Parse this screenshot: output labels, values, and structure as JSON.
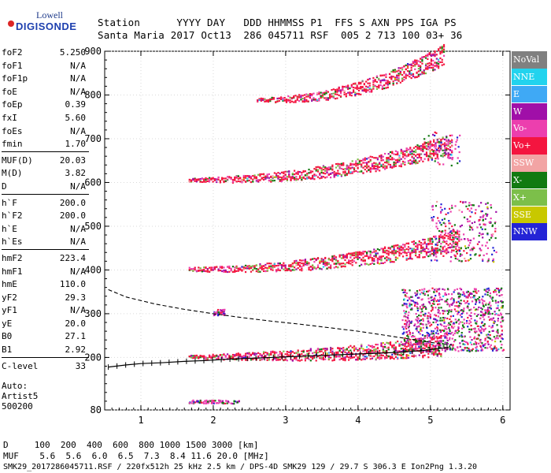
{
  "logo": {
    "line1": "Lowell",
    "line2": "DIGISONDE"
  },
  "header": {
    "line1": "Station      YYYY DAY   DDD HHMMSS P1  FFS S AXN PPS IGA PS",
    "line2": "Santa Maria 2017 Oct13  286 045711 RSF  005 2 713 100 03+ 36"
  },
  "params": [
    {
      "k": "foF2",
      "v": "5.250"
    },
    {
      "k": "foF1",
      "v": "N/A"
    },
    {
      "k": "foF1p",
      "v": "N/A"
    },
    {
      "k": "foE",
      "v": "N/A"
    },
    {
      "k": "foEp",
      "v": "0.39"
    },
    {
      "k": "fxI",
      "v": "5.60"
    },
    {
      "k": "foEs",
      "v": "N/A"
    },
    {
      "k": "fmin",
      "v": "1.70"
    },
    {
      "k": "MUF(D)",
      "v": "20.03"
    },
    {
      "k": "M(D)",
      "v": "3.82"
    },
    {
      "k": "D",
      "v": "N/A"
    },
    {
      "k": "h`F",
      "v": "200.0"
    },
    {
      "k": "h`F2",
      "v": "200.0"
    },
    {
      "k": "h`E",
      "v": "N/A"
    },
    {
      "k": "h`Es",
      "v": "N/A"
    },
    {
      "k": "hmF2",
      "v": "223.4"
    },
    {
      "k": "hmF1",
      "v": "N/A"
    },
    {
      "k": "hmE",
      "v": "110.0"
    },
    {
      "k": "yF2",
      "v": "29.3"
    },
    {
      "k": "yF1",
      "v": "N/A"
    },
    {
      "k": "yE",
      "v": "20.0"
    },
    {
      "k": "B0",
      "v": "27.1"
    },
    {
      "k": "B1",
      "v": "2.92"
    },
    {
      "k": "C-level",
      "v": "33"
    }
  ],
  "auto": {
    "line1": "Auto:",
    "line2": "Artist5",
    "line3": "500200"
  },
  "legend": [
    {
      "label": "NoVal",
      "color": "#808080"
    },
    {
      "label": "NNE",
      "color": "#22d3ee"
    },
    {
      "label": "E",
      "color": "#3fa9f5"
    },
    {
      "label": "W",
      "color": "#a00fa8"
    },
    {
      "label": "Vo-",
      "color": "#ec3fae"
    },
    {
      "label": "Vo+",
      "color": "#f4153f"
    },
    {
      "label": "SSW",
      "color": "#f2a4a4"
    },
    {
      "label": "X-",
      "color": "#117a11"
    },
    {
      "label": "X+",
      "color": "#7cbf4a"
    },
    {
      "label": "SSE",
      "color": "#c8c800"
    },
    {
      "label": "NNW",
      "color": "#2424d6"
    }
  ],
  "bottom": {
    "line1": "D     100  200  400  600  800 1000 1500 3000 [km]",
    "line2": "MUF    5.6  5.6  6.0  6.5  7.3  8.4 11.6 20.0 [MHz]",
    "line3": "SMK29_2017286045711.RSF / 220fx512h 25 kHz 2.5 km / DPS-4D SMK29 129 / 29.7 S 306.3 E Ion2Png 1.3.20"
  },
  "chart_data": {
    "type": "scatter",
    "xlim": [
      0.5,
      6.1
    ],
    "ylim": [
      80,
      900
    ],
    "x_ticks": [
      1,
      2,
      3,
      4,
      5,
      6
    ],
    "y_ticks": [
      80,
      200,
      300,
      400,
      500,
      600,
      700,
      800,
      900
    ],
    "grid": true,
    "legend_position": "right",
    "traces": [
      {
        "name": "F-trace",
        "x0": 1.66,
        "x1": 5.15,
        "h0": 203,
        "h1": 228,
        "dom": "#f4153f"
      },
      {
        "name": "2F-trace",
        "x0": 1.66,
        "x1": 5.4,
        "h0": 403,
        "h1": 470,
        "dom": "#f4153f"
      },
      {
        "name": "3F-trace",
        "x0": 1.66,
        "x1": 5.3,
        "h0": 607,
        "h1": 690,
        "dom": "#f4153f"
      },
      {
        "name": "4F-trace",
        "x0": 2.6,
        "x1": 5.2,
        "h0": 790,
        "h1": 895,
        "dom": "#f4153f"
      }
    ],
    "profile": {
      "f": [
        0.55,
        0.8,
        1.0,
        1.3,
        1.6,
        1.9,
        2.2,
        2.5,
        2.8,
        3.1,
        3.4,
        3.7,
        4.0,
        4.3,
        4.6,
        4.9,
        5.1,
        5.25
      ],
      "h": [
        178,
        183,
        186,
        188,
        191,
        193,
        196,
        198,
        200,
        202,
        204,
        206,
        208,
        210,
        212,
        216,
        220,
        223
      ]
    },
    "topside": {
      "f": [
        0.55,
        0.8,
        1.2,
        1.6,
        2.0,
        2.4,
        2.8,
        3.2,
        3.6,
        4.0,
        4.4,
        4.8,
        5.1,
        5.3
      ],
      "h": [
        355,
        338,
        322,
        310,
        300,
        291,
        283,
        276,
        268,
        260,
        250,
        240,
        232,
        228
      ]
    }
  }
}
